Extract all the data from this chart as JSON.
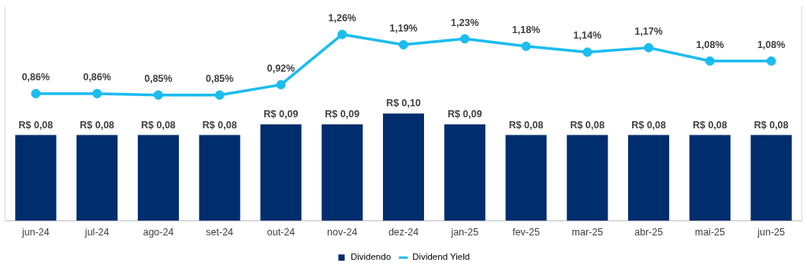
{
  "chart_data": {
    "type": "bar",
    "categories": [
      "jun-24",
      "jul-24",
      "ago-24",
      "set-24",
      "out-24",
      "nov-24",
      "dez-24",
      "jan-25",
      "fev-25",
      "mar-25",
      "abr-25",
      "mai-25",
      "jun-25"
    ],
    "series": [
      {
        "name": "Dividendo",
        "color": "#002d6e",
        "values": [
          0.08,
          0.08,
          0.08,
          0.08,
          0.09,
          0.09,
          0.1,
          0.09,
          0.08,
          0.08,
          0.08,
          0.08,
          0.08
        ],
        "value_labels": [
          "R$ 0,08",
          "R$ 0,08",
          "R$ 0,08",
          "R$ 0,08",
          "R$ 0,09",
          "R$ 0,09",
          "R$ 0,10",
          "R$ 0,09",
          "R$ 0,08",
          "R$ 0,08",
          "R$ 0,08",
          "R$ 0,08",
          "R$ 0,08"
        ]
      },
      {
        "name": "Dividend Yield",
        "type": "line",
        "axis": "y2",
        "color": "#1bbcef",
        "values": [
          0.86,
          0.86,
          0.85,
          0.85,
          0.92,
          1.26,
          1.19,
          1.23,
          1.18,
          1.14,
          1.17,
          1.08,
          1.08
        ],
        "value_labels": [
          "0,86%",
          "0,86%",
          "0,85%",
          "0,85%",
          "0,92%",
          "1,26%",
          "1,19%",
          "1,23%",
          "1,18%",
          "1,14%",
          "1,17%",
          "1,08%",
          "1,08%"
        ]
      }
    ],
    "ylim": [
      0,
      0.2
    ],
    "y2lim": [
      0,
      1.45
    ],
    "tick_labels": "x",
    "grid": false,
    "legend": "bottom",
    "marker": "circle",
    "line_style": "solid"
  }
}
